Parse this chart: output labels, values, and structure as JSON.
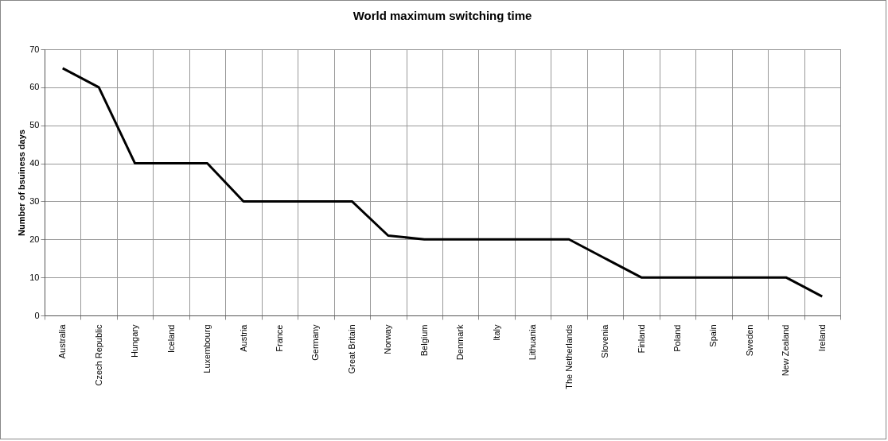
{
  "chart_data": {
    "type": "line",
    "title": "World maximum switching time",
    "ylabel": "Number of bsuiness days",
    "categories": [
      "Australia",
      "Czech Republic",
      "Hungary",
      "Iceland",
      "Luxembourg",
      "Austria",
      "France",
      "Germany",
      "Great Britain",
      "Norway",
      "Belgium",
      "Denmark",
      "Italy",
      "Lithuania",
      "The Netherlands",
      "Slovenia",
      "Finland",
      "Poland",
      "Spain",
      "Sweden",
      "New Zealand",
      "Ireland"
    ],
    "series": [
      {
        "color": "#000000",
        "values": [
          65,
          60,
          40,
          40,
          40,
          30,
          30,
          30,
          30,
          21,
          20,
          20,
          20,
          20,
          20,
          15,
          10,
          10,
          10,
          10,
          10,
          5
        ]
      }
    ],
    "ylim": [
      0,
      70
    ],
    "yticks": [
      0,
      10,
      20,
      30,
      40,
      50,
      60,
      70
    ],
    "grid": true,
    "legend": false,
    "marker": "none",
    "line_style": "solid"
  }
}
